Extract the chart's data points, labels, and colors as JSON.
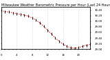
{
  "title": "Milwaukee Weather Barometric Pressure per Hour (Last 24 Hours)",
  "bg_color": "#ffffff",
  "plot_bg_color": "#ffffff",
  "line_color": "#cc0000",
  "marker_color": "#000000",
  "grid_color": "#bbbbbb",
  "y_min": 29.0,
  "y_max": 30.5,
  "x_min": 0,
  "x_max": 23,
  "y_tick_values": [
    30.4,
    30.2,
    30.0,
    29.8,
    29.6,
    29.4,
    29.2,
    29.0
  ],
  "y_tick_labels": [
    "30.40",
    "30.20",
    "30.00",
    "29.80",
    "29.60",
    "29.40",
    "29.20",
    "29.00"
  ],
  "pressure_values": [
    30.38,
    30.35,
    30.33,
    30.3,
    30.27,
    30.25,
    30.22,
    30.18,
    30.12,
    30.04,
    29.94,
    29.82,
    29.68,
    29.54,
    29.4,
    29.28,
    29.18,
    29.1,
    29.05,
    29.04,
    29.06,
    29.1,
    29.14,
    29.17
  ],
  "hours": [
    0,
    1,
    2,
    3,
    4,
    5,
    6,
    7,
    8,
    9,
    10,
    11,
    12,
    13,
    14,
    15,
    16,
    17,
    18,
    19,
    20,
    21,
    22,
    23
  ],
  "grid_x_positions": [
    4,
    8,
    12,
    16,
    20
  ],
  "title_fontsize": 3.5,
  "tick_fontsize": 2.8
}
